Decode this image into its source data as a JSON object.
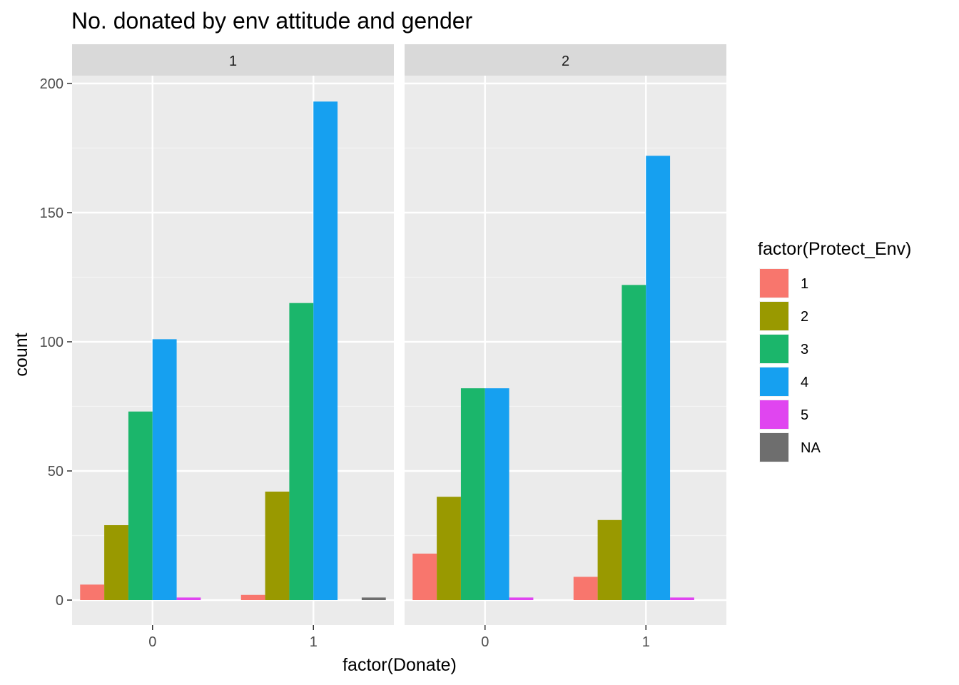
{
  "chart_data": {
    "type": "bar",
    "title": "No. donated by env attitude and gender",
    "xlabel": "factor(Donate)",
    "ylabel": "count",
    "ylim": [
      -9,
      210
    ],
    "yticks": [
      0,
      50,
      100,
      150,
      200
    ],
    "categories": [
      "0",
      "1"
    ],
    "grid": true,
    "legend_position": "right",
    "legend": {
      "title": "factor(Protect_Env)",
      "entries": [
        {
          "label": "1",
          "color": "#F8766D"
        },
        {
          "label": "2",
          "color": "#B79F00"
        },
        {
          "label": "3",
          "color": "#00BA38"
        },
        {
          "label": "4",
          "color": "#00BFC4"
        },
        {
          "label": "5",
          "color": "#F564E3"
        },
        {
          "label": "NA",
          "color": "#7F7F7F"
        }
      ]
    },
    "colors": {
      "1": "#F8766D",
      "2": "#999900",
      "3": "#1BB66B",
      "4": "#16A0F0",
      "5": "#E045F0",
      "NA": "#6E6E6E"
    },
    "facets": [
      {
        "label": "1",
        "series": [
          {
            "name": "1",
            "values": [
              6,
              2
            ]
          },
          {
            "name": "2",
            "values": [
              29,
              42
            ]
          },
          {
            "name": "3",
            "values": [
              73,
              115
            ]
          },
          {
            "name": "4",
            "values": [
              101,
              193
            ]
          },
          {
            "name": "5",
            "values": [
              1,
              0
            ]
          },
          {
            "name": "NA",
            "values": [
              0,
              1
            ]
          }
        ]
      },
      {
        "label": "2",
        "series": [
          {
            "name": "1",
            "values": [
              18,
              9
            ]
          },
          {
            "name": "2",
            "values": [
              40,
              31
            ]
          },
          {
            "name": "3",
            "values": [
              82,
              122
            ]
          },
          {
            "name": "4",
            "values": [
              82,
              172
            ]
          },
          {
            "name": "5",
            "values": [
              1,
              1
            ]
          },
          {
            "name": "NA",
            "values": [
              0,
              0
            ]
          }
        ]
      }
    ]
  }
}
